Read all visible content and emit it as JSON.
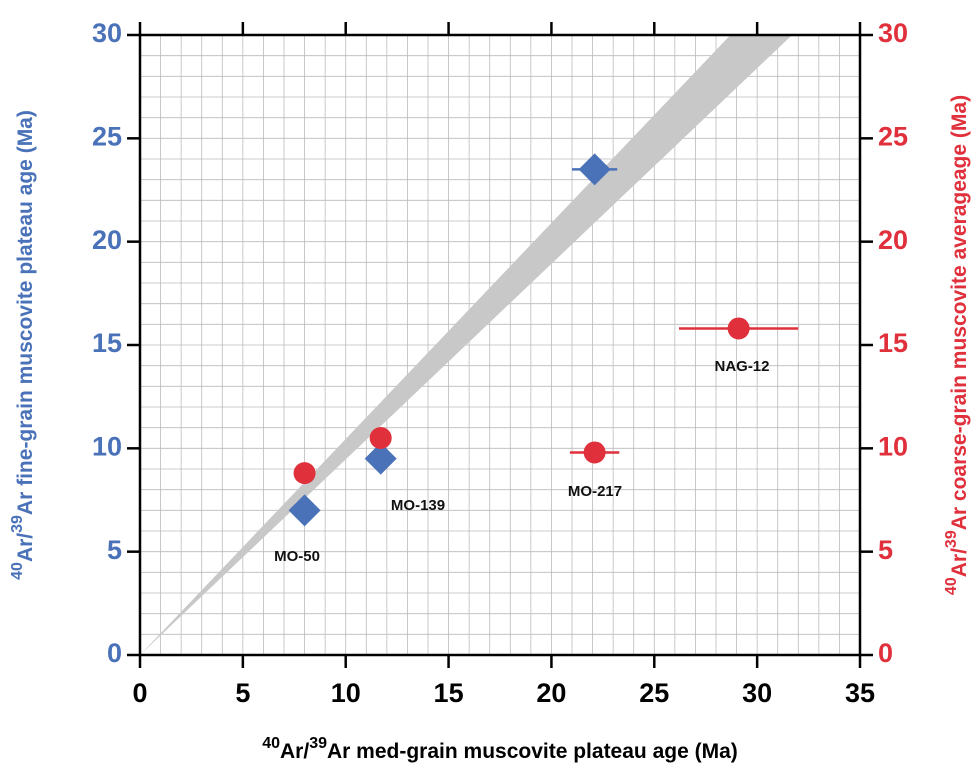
{
  "chart_data": {
    "type": "scatter",
    "xlabel": "40Ar/39Ar med-grain muscovite plateau age (Ma)",
    "ylabel": "40Ar/39Ar fine-grain muscovite plateau age (Ma)",
    "y2label": "40Ar/39Ar coarse-grain muscovite averageage (Ma)",
    "xlim": [
      0,
      35
    ],
    "xticks": [
      0,
      5,
      10,
      15,
      20,
      25,
      30,
      35
    ],
    "ylim": [
      0,
      30
    ],
    "yticks": [
      0,
      5,
      10,
      15,
      20,
      25,
      30
    ],
    "y2lim": [
      0,
      30
    ],
    "y2ticks": [
      0,
      5,
      10,
      15,
      20,
      25,
      30
    ],
    "grid": true,
    "minor_grid": 1,
    "band": {
      "color": "#c8c8c8",
      "x": [
        0,
        28.7,
        31.7
      ],
      "y": [
        0,
        30,
        30
      ]
    },
    "ylabel_color": "#4a72b8",
    "y2label_color": "#e0303c",
    "series": [
      {
        "color": "#4a72b8",
        "marker": "diamond",
        "x": [
          8,
          11.7,
          22.1
        ],
        "values": [
          7.0,
          9.5,
          23.5
        ],
        "xerr": [
          null,
          null,
          1.1
        ]
      },
      {
        "color": "#e0303c",
        "marker": "circle",
        "axis": "y2",
        "x": [
          8,
          11.7,
          22.1,
          29.1
        ],
        "values": [
          8.8,
          10.5,
          9.8,
          15.8
        ],
        "xerr": [
          null,
          null,
          1.2,
          2.9
        ]
      }
    ],
    "annotations": [
      "MO-50",
      "MO-139",
      "MO-217",
      "NAG-12"
    ]
  }
}
